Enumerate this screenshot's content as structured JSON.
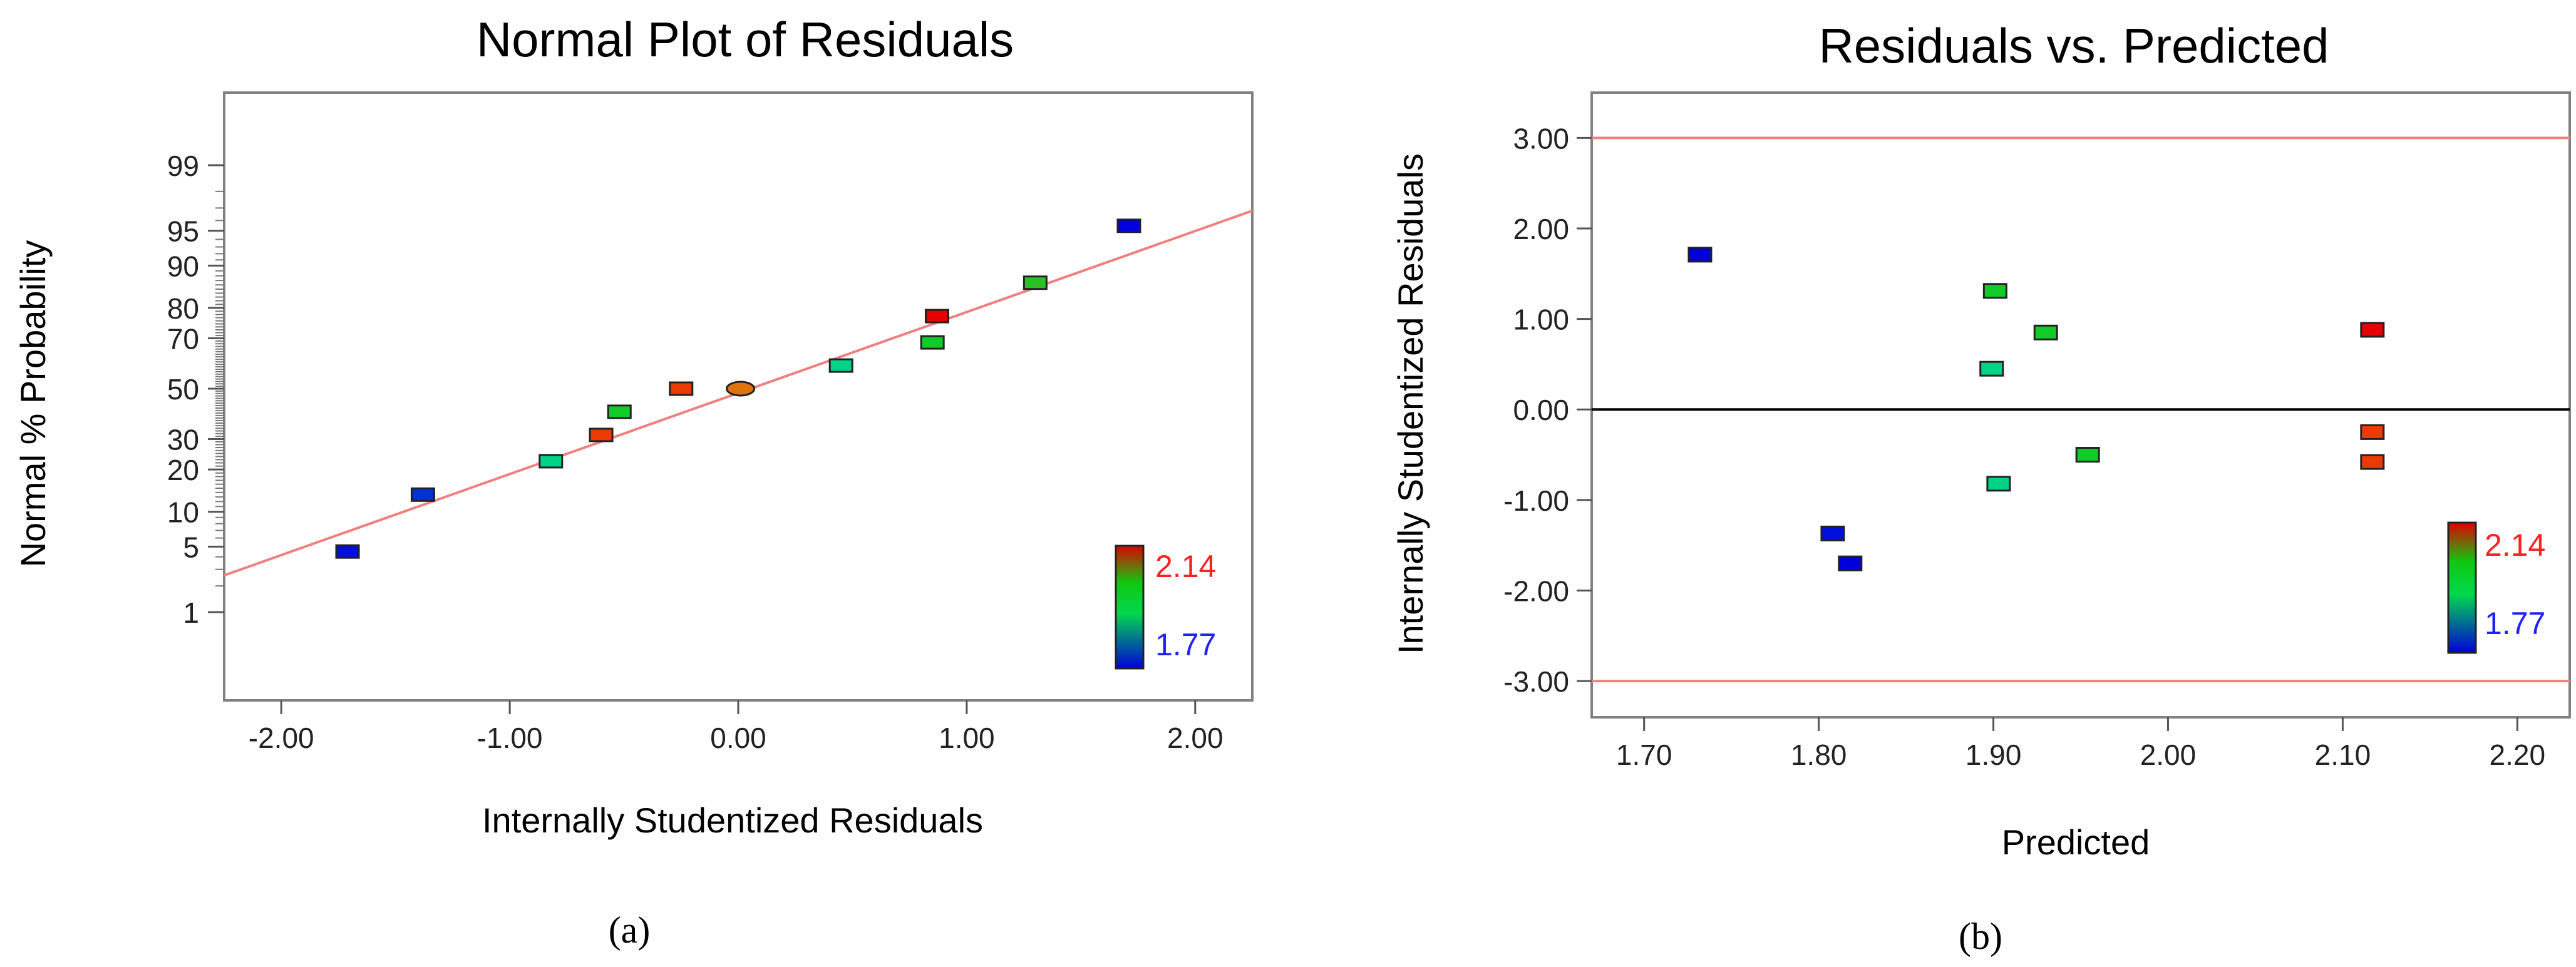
{
  "chart_data": [
    {
      "id": "a",
      "type": "scatter",
      "title": "Normal Plot of Residuals",
      "xlabel": "Internally Studentized Residuals",
      "ylabel": "Normal % Probability",
      "caption": "(a)",
      "xlim": [
        -2.25,
        2.25
      ],
      "x_ticks": [
        -2.0,
        -1.0,
        0.0,
        1.0,
        2.0
      ],
      "x_tick_labels": [
        "-2.00",
        "-1.00",
        "0.00",
        "1.00",
        "2.00"
      ],
      "y_scale": "normal-probability",
      "y_ticks": [
        1,
        5,
        10,
        20,
        30,
        50,
        70,
        80,
        90,
        95,
        99
      ],
      "y_tick_labels": [
        "1",
        "5",
        "10",
        "20",
        "30",
        "50",
        "70",
        "80",
        "90",
        "95",
        "99"
      ],
      "reference_line": {
        "x": [
          -2.25,
          2.25
        ],
        "y_percent": [
          2.6,
          96.8
        ],
        "color": "#f08080"
      },
      "points": [
        {
          "x": -1.71,
          "y": 4.5,
          "response": 1.78
        },
        {
          "x": -1.38,
          "y": 13.5,
          "response": 1.8
        },
        {
          "x": -0.82,
          "y": 22.5,
          "response": 1.93
        },
        {
          "x": -0.6,
          "y": 31.5,
          "response": 2.1
        },
        {
          "x": -0.52,
          "y": 40.5,
          "response": 1.98
        },
        {
          "x": -0.25,
          "y": 50.0,
          "response": 2.1
        },
        {
          "x": 0.01,
          "y": 50.0,
          "response": 2.06
        },
        {
          "x": 0.45,
          "y": 59.5,
          "response": 1.93
        },
        {
          "x": 0.85,
          "y": 68.5,
          "response": 1.98
        },
        {
          "x": 0.87,
          "y": 77.5,
          "response": 2.14
        },
        {
          "x": 1.3,
          "y": 86.5,
          "response": 1.99
        },
        {
          "x": 1.71,
          "y": 95.5,
          "response": 1.77
        }
      ],
      "color_scale": {
        "min": 1.77,
        "max": 2.14,
        "min_label": "1.77",
        "max_label": "2.14",
        "min_color": "#2020ff",
        "max_color": "#ff2020"
      }
    },
    {
      "id": "b",
      "type": "scatter",
      "title": "Residuals vs. Predicted",
      "xlabel": "Predicted",
      "ylabel": "Internally Studentized Residuals",
      "caption": "(b)",
      "xlim": [
        1.67,
        2.23
      ],
      "ylim": [
        -3.4,
        3.5
      ],
      "x_ticks": [
        1.7,
        1.8,
        1.9,
        2.0,
        2.1,
        2.2
      ],
      "x_tick_labels": [
        "1.70",
        "1.80",
        "1.90",
        "2.00",
        "2.10",
        "2.20"
      ],
      "y_ticks": [
        -3,
        -2,
        -1,
        0,
        1,
        2,
        3
      ],
      "y_tick_labels": [
        "-3.00",
        "-2.00",
        "-1.00",
        "0.00",
        "1.00",
        "2.00",
        "3.00"
      ],
      "limit_lines": {
        "values": [
          3.0,
          -3.0
        ],
        "color": "#f08080"
      },
      "zero_line": {
        "value": 0.0,
        "color": "#000000"
      },
      "points": [
        {
          "x": 1.732,
          "y": 1.71,
          "response": 1.77
        },
        {
          "x": 1.808,
          "y": -1.37,
          "response": 1.78
        },
        {
          "x": 1.818,
          "y": -1.7,
          "response": 1.77
        },
        {
          "x": 1.901,
          "y": 1.31,
          "response": 1.98
        },
        {
          "x": 1.899,
          "y": 0.45,
          "response": 1.93
        },
        {
          "x": 1.903,
          "y": -0.82,
          "response": 1.93
        },
        {
          "x": 1.93,
          "y": 0.85,
          "response": 1.98
        },
        {
          "x": 1.954,
          "y": -0.5,
          "response": 1.98
        },
        {
          "x": 2.117,
          "y": 0.88,
          "response": 2.14
        },
        {
          "x": 2.117,
          "y": -0.25,
          "response": 2.1
        },
        {
          "x": 2.117,
          "y": -0.58,
          "response": 2.1
        }
      ],
      "color_scale": {
        "min": 1.77,
        "max": 2.14,
        "min_label": "1.77",
        "max_label": "2.14",
        "min_color": "#2020ff",
        "max_color": "#ff2020"
      }
    }
  ]
}
